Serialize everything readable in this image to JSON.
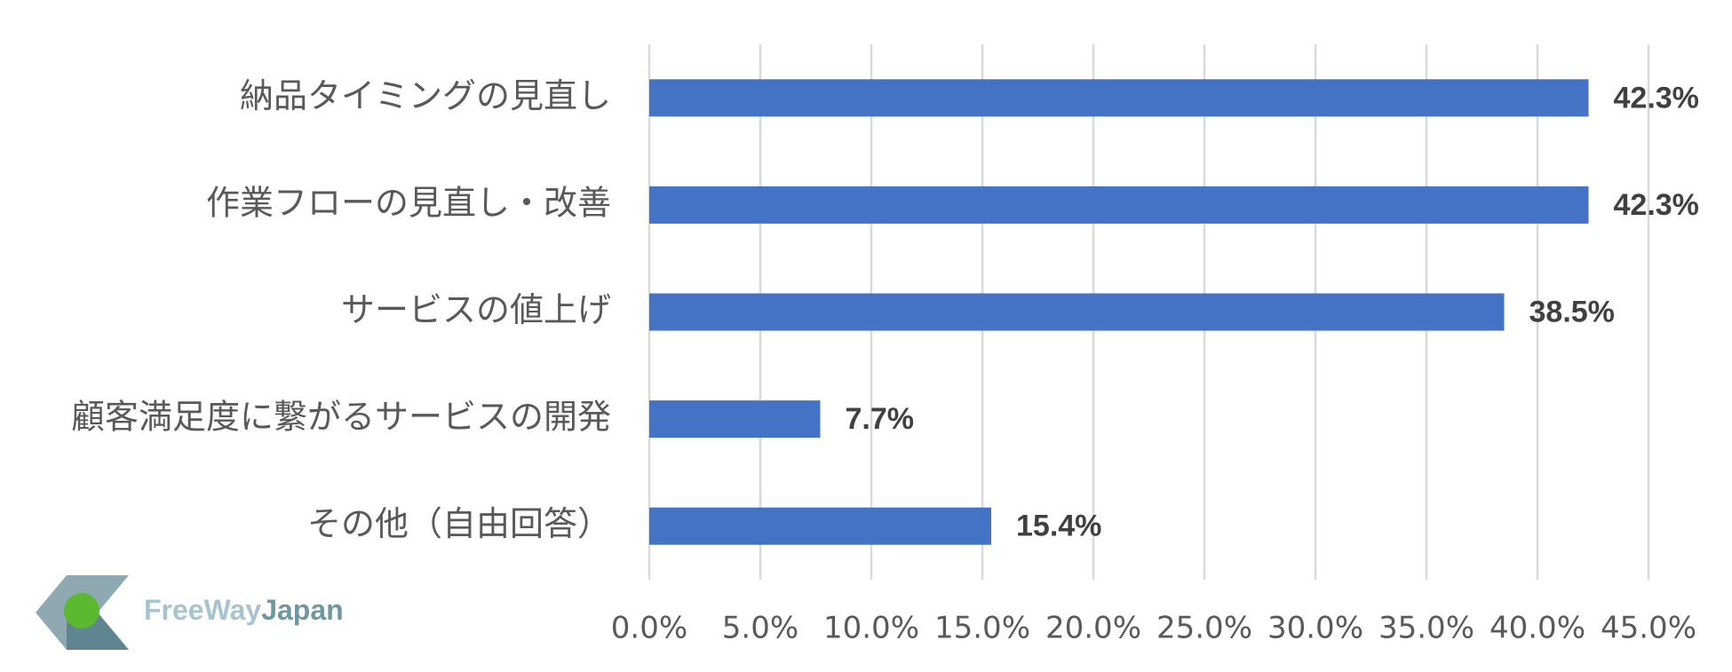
{
  "chart_data": {
    "type": "barh",
    "categories": [
      "納品タイミングの見直し",
      "作業フローの見直し・改善",
      "サービスの値上げ",
      "顧客満足度に繋がるサービスの開発",
      "その他（自由回答）"
    ],
    "values": [
      42.3,
      42.3,
      38.5,
      7.7,
      15.4
    ],
    "value_labels": [
      "42.3%",
      "42.3%",
      "38.5%",
      "7.7%",
      "15.4%"
    ],
    "color": "#4472c4",
    "xlim": [
      0,
      45
    ],
    "xticks": [
      {
        "value": 0,
        "label": "0.0%"
      },
      {
        "value": 5,
        "label": "5.0%"
      },
      {
        "value": 10,
        "label": "10.0%"
      },
      {
        "value": 15,
        "label": "15.0%"
      },
      {
        "value": 20,
        "label": "20.0%"
      },
      {
        "value": 25,
        "label": "25.0%"
      },
      {
        "value": 30,
        "label": "30.0%"
      },
      {
        "value": 35,
        "label": "35.0%"
      },
      {
        "value": 40,
        "label": "40.0%"
      },
      {
        "value": 45,
        "label": "45.0%"
      }
    ],
    "grid": true
  },
  "logo": [
    "FreeWay",
    "Japan"
  ]
}
